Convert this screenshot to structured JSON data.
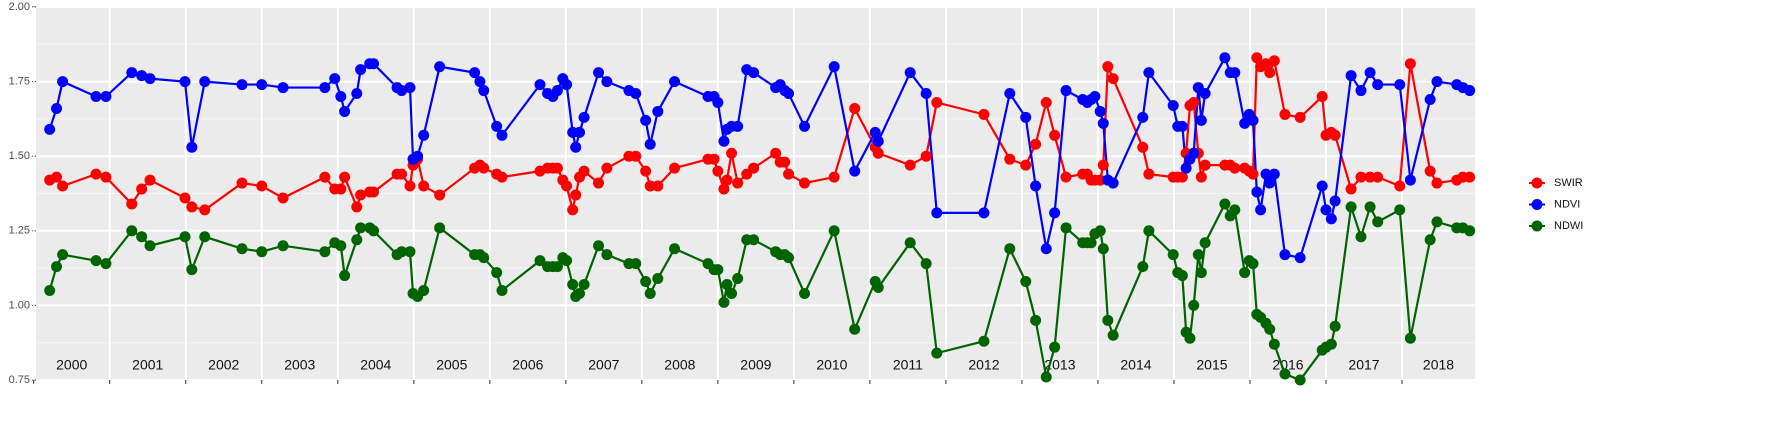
{
  "chart_data": {
    "type": "line",
    "xlim": [
      2000.03,
      2018.96
    ],
    "ylim": [
      0.75,
      2.0
    ],
    "yticks": [
      0.75,
      {
        "value": 1,
        "label": "1.00"
      },
      1.25,
      {
        "value": 1.5,
        "label": "1.50"
      },
      1.75,
      {
        "value": 2,
        "label": "2.00"
      }
    ],
    "xticks": [
      2000,
      2001,
      2002,
      2003,
      2004,
      2005,
      2006,
      2007,
      2008,
      2009,
      2010,
      2011,
      2012,
      2013,
      2014,
      2015,
      2016,
      2017,
      2018
    ],
    "grid": true,
    "legend": "right",
    "x": [
      2000.21,
      2000.3,
      2000.38,
      2000.82,
      2000.95,
      2001.29,
      2001.42,
      2001.53,
      2001.99,
      2002.08,
      2002.25,
      2002.74,
      2003.0,
      2003.28,
      2003.83,
      2003.96,
      2004.04,
      2004.09,
      2004.25,
      2004.3,
      2004.42,
      2004.47,
      2004.78,
      2004.84,
      2004.95,
      2004.99,
      2005.05,
      2005.13,
      2005.34,
      2005.8,
      2005.87,
      2005.92,
      2006.09,
      2006.16,
      2006.66,
      2006.76,
      2006.83,
      2006.89,
      2006.96,
      2007.01,
      2007.09,
      2007.13,
      2007.18,
      2007.24,
      2007.43,
      2007.54,
      2007.83,
      2007.92,
      2008.05,
      2008.11,
      2008.21,
      2008.43,
      2008.87,
      2008.95,
      2009.0,
      2009.08,
      2009.12,
      2009.18,
      2009.26,
      2009.38,
      2009.47,
      2009.76,
      2009.82,
      2009.88,
      2009.93,
      2010.14,
      2010.53,
      2010.8,
      2011.07,
      2011.11,
      2011.53,
      2011.74,
      2011.88,
      2012.5,
      2012.84,
      2013.05,
      2013.18,
      2013.32,
      2013.43,
      2013.58,
      2013.8,
      2013.86,
      2013.91,
      2013.96,
      2014.03,
      2014.07,
      2014.13,
      2014.2,
      2014.59,
      2014.67,
      2014.99,
      2015.05,
      2015.11,
      2015.16,
      2015.21,
      2015.26,
      2015.32,
      2015.36,
      2015.41,
      2015.67,
      2015.74,
      2015.8,
      2015.93,
      2015.99,
      2016.04,
      2016.09,
      2016.14,
      2016.21,
      2016.26,
      2016.32,
      2016.46,
      2016.66,
      2016.95,
      2017.0,
      2017.07,
      2017.12,
      2017.33,
      2017.46,
      2017.58,
      2017.68,
      2017.97,
      2018.11,
      2018.37,
      2018.46,
      2018.72,
      2018.8,
      2018.89
    ],
    "series": [
      {
        "name": "SWIR",
        "color": "#ff0000",
        "values": [
          1.42,
          1.43,
          1.4,
          1.44,
          1.43,
          1.34,
          1.39,
          1.42,
          1.36,
          1.33,
          1.32,
          1.41,
          1.4,
          1.36,
          1.43,
          1.39,
          1.39,
          1.43,
          1.33,
          1.37,
          1.38,
          1.38,
          1.44,
          1.44,
          1.4,
          1.47,
          1.49,
          1.4,
          1.37,
          1.46,
          1.47,
          1.46,
          1.44,
          1.43,
          1.45,
          1.46,
          1.46,
          1.46,
          1.42,
          1.4,
          1.32,
          1.37,
          1.43,
          1.45,
          1.41,
          1.46,
          1.5,
          1.5,
          1.45,
          1.4,
          1.4,
          1.46,
          1.49,
          1.49,
          1.45,
          1.39,
          1.42,
          1.51,
          1.41,
          1.44,
          1.46,
          1.51,
          1.48,
          1.48,
          1.44,
          1.41,
          1.43,
          1.66,
          1.53,
          1.51,
          1.47,
          1.5,
          1.68,
          1.64,
          1.49,
          1.47,
          1.54,
          1.68,
          1.57,
          1.43,
          1.44,
          1.44,
          1.42,
          1.42,
          1.42,
          1.47,
          1.8,
          1.76,
          1.53,
          1.44,
          1.43,
          1.43,
          1.43,
          1.51,
          1.67,
          1.68,
          1.51,
          1.43,
          1.47,
          1.47,
          1.47,
          1.46,
          1.46,
          1.45,
          1.44,
          1.83,
          1.8,
          1.81,
          1.78,
          1.82,
          1.64,
          1.63,
          1.7,
          1.57,
          1.58,
          1.57,
          1.39,
          1.43,
          1.43,
          1.43,
          1.4,
          1.81,
          1.45,
          1.41,
          1.42,
          1.43,
          1.43
        ]
      },
      {
        "name": "NDVI",
        "color": "#0000ff",
        "values": [
          1.59,
          1.66,
          1.75,
          1.7,
          1.7,
          1.78,
          1.77,
          1.76,
          1.75,
          1.53,
          1.75,
          1.74,
          1.74,
          1.73,
          1.73,
          1.76,
          1.7,
          1.65,
          1.71,
          1.79,
          1.81,
          1.81,
          1.73,
          1.72,
          1.73,
          1.49,
          1.5,
          1.57,
          1.8,
          1.78,
          1.75,
          1.72,
          1.6,
          1.57,
          1.74,
          1.71,
          1.7,
          1.72,
          1.76,
          1.74,
          1.58,
          1.53,
          1.58,
          1.63,
          1.78,
          1.75,
          1.72,
          1.71,
          1.62,
          1.54,
          1.65,
          1.75,
          1.7,
          1.7,
          1.68,
          1.55,
          1.59,
          1.6,
          1.6,
          1.79,
          1.78,
          1.73,
          1.74,
          1.72,
          1.71,
          1.6,
          1.8,
          1.45,
          1.58,
          1.55,
          1.78,
          1.71,
          1.31,
          1.31,
          1.71,
          1.63,
          1.4,
          1.19,
          1.31,
          1.72,
          1.69,
          1.68,
          1.69,
          1.7,
          1.65,
          1.61,
          1.42,
          1.41,
          1.63,
          1.78,
          1.67,
          1.6,
          1.6,
          1.46,
          1.49,
          1.51,
          1.73,
          1.62,
          1.71,
          1.83,
          1.78,
          1.78,
          1.61,
          1.64,
          1.62,
          1.38,
          1.32,
          1.44,
          1.41,
          1.44,
          1.17,
          1.16,
          1.4,
          1.32,
          1.29,
          1.35,
          1.77,
          1.72,
          1.78,
          1.74,
          1.74,
          1.42,
          1.69,
          1.75,
          1.74,
          1.73,
          1.72
        ]
      },
      {
        "name": "NDWI",
        "color": "#006400",
        "values": [
          1.05,
          1.13,
          1.17,
          1.15,
          1.14,
          1.25,
          1.23,
          1.2,
          1.23,
          1.12,
          1.23,
          1.19,
          1.18,
          1.2,
          1.18,
          1.21,
          1.2,
          1.1,
          1.22,
          1.26,
          1.26,
          1.25,
          1.17,
          1.18,
          1.18,
          1.04,
          1.03,
          1.05,
          1.26,
          1.17,
          1.17,
          1.16,
          1.11,
          1.05,
          1.15,
          1.13,
          1.13,
          1.13,
          1.16,
          1.15,
          1.07,
          1.03,
          1.04,
          1.07,
          1.2,
          1.17,
          1.14,
          1.14,
          1.08,
          1.04,
          1.09,
          1.19,
          1.14,
          1.12,
          1.12,
          1.01,
          1.07,
          1.04,
          1.09,
          1.22,
          1.22,
          1.18,
          1.17,
          1.17,
          1.16,
          1.04,
          1.25,
          0.92,
          1.08,
          1.06,
          1.21,
          1.14,
          0.84,
          0.88,
          1.19,
          1.08,
          0.95,
          0.76,
          0.86,
          1.26,
          1.21,
          1.21,
          1.21,
          1.24,
          1.25,
          1.19,
          0.95,
          0.9,
          1.13,
          1.25,
          1.17,
          1.11,
          1.1,
          0.91,
          0.89,
          1.0,
          1.17,
          1.11,
          1.21,
          1.34,
          1.3,
          1.32,
          1.11,
          1.15,
          1.14,
          0.97,
          0.96,
          0.94,
          0.92,
          0.87,
          0.77,
          0.75,
          0.85,
          0.86,
          0.87,
          0.93,
          1.33,
          1.23,
          1.33,
          1.28,
          1.32,
          0.89,
          1.22,
          1.28,
          1.26,
          1.26,
          1.25
        ]
      }
    ]
  }
}
